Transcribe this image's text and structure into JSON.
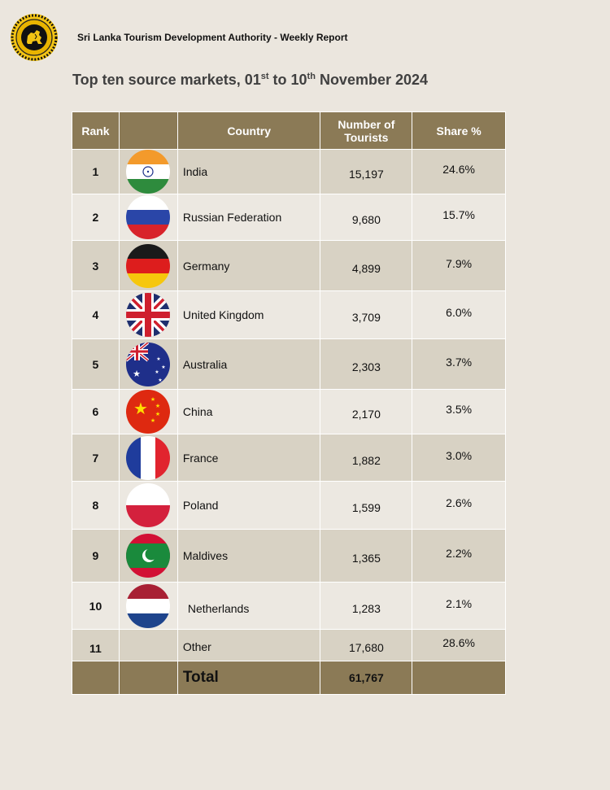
{
  "header": {
    "org": "Sri Lanka Tourism Development Authority - Weekly Report",
    "title_pre": "Top ten source markets, 01",
    "title_sup1": "st",
    "title_mid": " to 10",
    "title_sup2": "th",
    "title_post": " November 2024"
  },
  "table": {
    "columns": [
      "Rank",
      "",
      "Country",
      "Number of Tourists",
      "Share %"
    ],
    "rows": [
      {
        "rank": "1",
        "flag": "india-flag-icon",
        "country": "India",
        "tourists": "15,197",
        "share": "24.6%"
      },
      {
        "rank": "2",
        "flag": "russia-flag-icon",
        "country": "Russian Federation",
        "tourists": "9,680",
        "share": "15.7%"
      },
      {
        "rank": "3",
        "flag": "germany-flag-icon",
        "country": "Germany",
        "tourists": "4,899",
        "share": "7.9%"
      },
      {
        "rank": "4",
        "flag": "uk-flag-icon",
        "country": "United Kingdom",
        "tourists": "3,709",
        "share": "6.0%"
      },
      {
        "rank": "5",
        "flag": "australia-flag-icon",
        "country": "Australia",
        "tourists": "2,303",
        "share": "3.7%"
      },
      {
        "rank": "6",
        "flag": "china-flag-icon",
        "country": "China",
        "tourists": "2,170",
        "share": "3.5%"
      },
      {
        "rank": "7",
        "flag": "france-flag-icon",
        "country": "France",
        "tourists": "1,882",
        "share": "3.0%"
      },
      {
        "rank": "8",
        "flag": "poland-flag-icon",
        "country": "Poland",
        "tourists": "1,599",
        "share": "2.6%"
      },
      {
        "rank": "9",
        "flag": "maldives-flag-icon",
        "country": "Maldives",
        "tourists": "1,365",
        "share": "2.2%"
      },
      {
        "rank": "10",
        "flag": "netherlands-flag-icon",
        "country": "Netherlands",
        "tourists": "1,283",
        "share": "2.1%"
      },
      {
        "rank": "11",
        "flag": "",
        "country": "Other",
        "tourists": "17,680",
        "share": "28.6%"
      }
    ],
    "total_label": "Total",
    "total_value": "61,767"
  },
  "colors": {
    "header_bg": "#8b7a56",
    "row_odd": "#d8d2c4",
    "row_even": "#ece8e1",
    "page_bg": "#ebe6de"
  }
}
